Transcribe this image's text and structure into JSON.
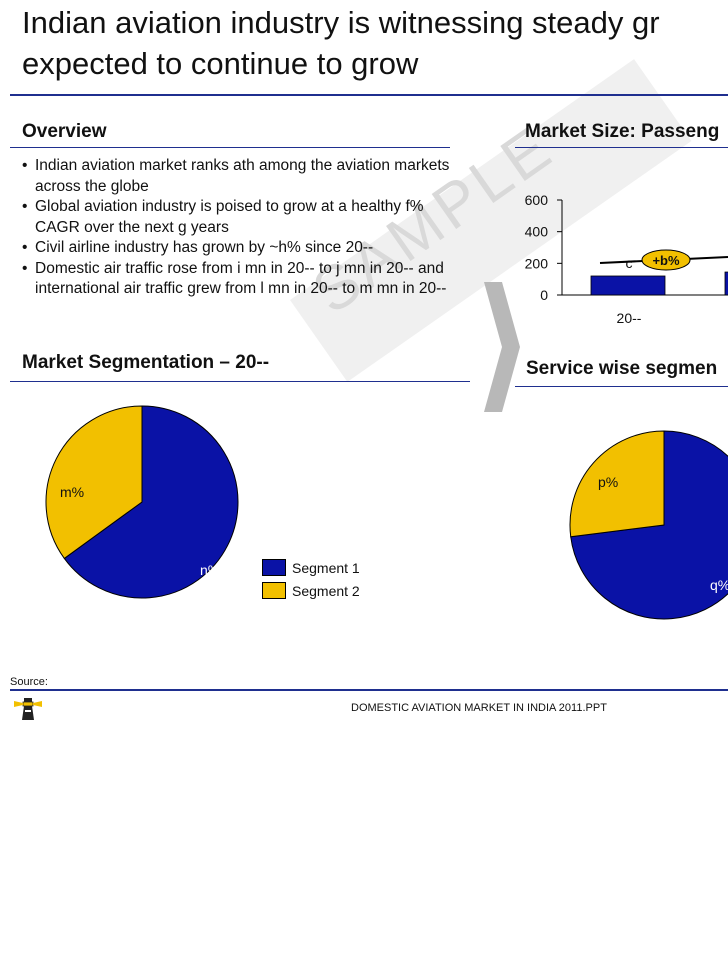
{
  "title": {
    "line1": "Indian aviation industry is witnessing steady gr",
    "line2": "expected to continue to grow"
  },
  "overview": {
    "heading": "Overview",
    "bullets": [
      "Indian aviation market ranks ath among the aviation markets across the globe",
      "Global aviation industry is poised to grow at a healthy f% CAGR over the next g years",
      "Civil airline industry has grown by ~h% since 20--",
      "Domestic air traffic rose from i mn in 20-- to j mn in 20-- and international air traffic grew from l mn in 20-- to m mn in 20--"
    ]
  },
  "market_size": {
    "heading": "Market Size: Passeng"
  },
  "market_segmentation": {
    "heading": "Market Segmentation – 20--"
  },
  "service_segmentation": {
    "heading": "Service wise segmen"
  },
  "watermark": "SAMPLE",
  "source_label": "Source:",
  "footer": "DOMESTIC AVIATION MARKET IN INDIA 2011.PPT",
  "colors": {
    "navy": "#0a12a6",
    "gold": "#f2c000",
    "rule": "#1f2f8f"
  },
  "chart_data": [
    {
      "type": "bar",
      "categories": [
        "20--",
        ""
      ],
      "values": [
        120,
        145
      ],
      "data_labels": [
        "c",
        ""
      ],
      "yticks": [
        0,
        200,
        400,
        600
      ],
      "ylim": [
        0,
        600
      ],
      "annotation": "+b%",
      "title": "",
      "xlabel": "",
      "ylabel": ""
    },
    {
      "type": "pie",
      "labels": [
        "n%",
        "m%"
      ],
      "series_names": [
        "Segment 1",
        "Segment 2"
      ],
      "values": [
        65,
        35
      ],
      "legend": "right"
    },
    {
      "type": "pie",
      "labels": [
        "q%",
        "p%"
      ],
      "values": [
        73,
        27
      ]
    }
  ]
}
